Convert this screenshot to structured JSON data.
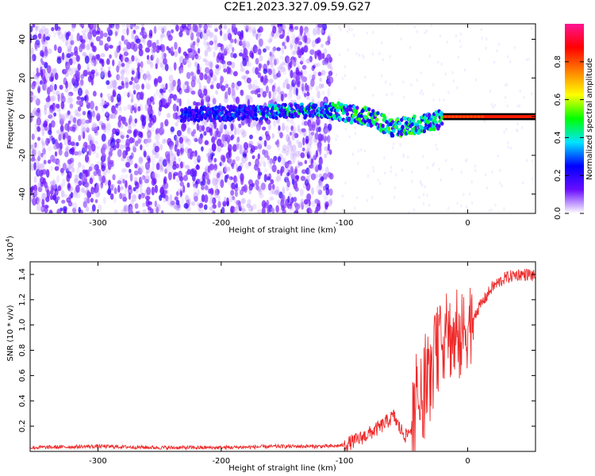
{
  "title": "C2E1.2023.327.09.59.G27",
  "chart_data": [
    {
      "type": "heatmap",
      "title": "",
      "xlabel": "Height of straight line (km)",
      "ylabel": "Frequency (Hz)",
      "xlim": [
        -355,
        55
      ],
      "ylim": [
        -50,
        48
      ],
      "x_ticks": [
        -300,
        -200,
        -100,
        0
      ],
      "x_tick_labels": [
        "-300",
        "-200",
        "-100",
        "0"
      ],
      "y_ticks": [
        -40,
        -20,
        0,
        20,
        40
      ],
      "y_tick_labels": [
        "-40",
        "-20",
        "0",
        "20",
        "40"
      ],
      "colorbar": {
        "label": "Normalized spectral amplitude",
        "range": [
          0,
          1
        ],
        "ticks": [
          0,
          0.2,
          0.4,
          0.6,
          0.8
        ],
        "tick_labels": [
          "0.0",
          "0.2",
          "0.4",
          "0.6",
          "0.8"
        ],
        "colormap": [
          "#ffffff",
          "#6a0dff",
          "#0000ff",
          "#00e5ff",
          "#00ff00",
          "#ffff00",
          "#ff8000",
          "#ff0000",
          "#ff1493"
        ]
      },
      "features": [
        {
          "name": "noise",
          "x_range": [
            -355,
            -110
          ],
          "y_range": [
            -50,
            48
          ],
          "amplitude": 0.1
        },
        {
          "name": "signal-track",
          "points": [
            [
              -230,
              1
            ],
            [
              -180,
              2
            ],
            [
              -140,
              3
            ],
            [
              -110,
              3
            ],
            [
              -80,
              0
            ],
            [
              -60,
              -6
            ],
            [
              -40,
              -4
            ],
            [
              -25,
              -2
            ],
            [
              -15,
              0
            ],
            [
              0,
              0
            ],
            [
              55,
              0
            ]
          ],
          "amplitude_range": [
            0.2,
            0.9
          ]
        }
      ],
      "grid": false,
      "legend": "colorbar-right"
    },
    {
      "type": "line",
      "title": "",
      "xlabel": "Height of straight line (km)",
      "ylabel": "SNR (10 * v/v)",
      "y_scale_label": "(x10^4)",
      "xlim": [
        -355,
        55
      ],
      "ylim": [
        0,
        1.5
      ],
      "x_ticks": [
        -300,
        -200,
        -100,
        0
      ],
      "x_tick_labels": [
        "-300",
        "-200",
        "-100",
        "0"
      ],
      "y_ticks": [
        0.2,
        0.4,
        0.6,
        0.8,
        1.0,
        1.2,
        1.4
      ],
      "y_tick_labels": [
        "0.2",
        "0.4",
        "0.6",
        "0.8",
        "1.0",
        "1.2",
        "1.4"
      ],
      "series": [
        {
          "color": "#ee2a2a",
          "x": [
            -355,
            -300,
            -250,
            -200,
            -150,
            -110,
            -100,
            -90,
            -80,
            -70,
            -60,
            -55,
            -50,
            -45,
            -40,
            -35,
            -30,
            -25,
            -20,
            -15,
            -10,
            -5,
            0,
            10,
            20,
            30,
            40,
            50,
            55
          ],
          "y": [
            0.03,
            0.04,
            0.03,
            0.03,
            0.04,
            0.04,
            0.05,
            0.09,
            0.14,
            0.2,
            0.28,
            0.18,
            0.12,
            0.2,
            0.35,
            0.45,
            0.6,
            0.8,
            0.9,
            0.92,
            0.85,
            0.9,
            1.0,
            1.15,
            1.3,
            1.37,
            1.4,
            1.4,
            1.38
          ]
        }
      ],
      "grid": false
    }
  ]
}
